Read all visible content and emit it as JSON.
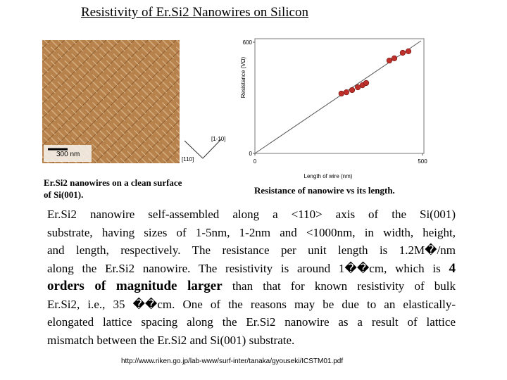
{
  "header": {
    "title": "Resistivity of Er.Si2 Nanowires on Silicon"
  },
  "image": {
    "scale_bar": "300 nm",
    "direction_a": "[110]",
    "direction_b": "[1-10]",
    "caption_lines": [
      "Er.Si2 nanowires on a clean surface",
      "of Si(001)."
    ]
  },
  "chart_data": {
    "type": "scatter",
    "x_label": "Length of wire (nm)",
    "y_label": "Resistance (VΩ)",
    "caption": "Resistance of nanowire vs its length.",
    "x": [
      258,
      273,
      290,
      307,
      321,
      332,
      401,
      416,
      441,
      458
    ],
    "values": [
      323,
      330,
      342,
      357,
      368,
      380,
      501,
      513,
      543,
      551
    ],
    "color": "#c0302a",
    "xlim": [
      0,
      500
    ],
    "ylim": [
      0,
      600
    ],
    "xticks": [
      0,
      500
    ],
    "yticks": [
      0,
      600
    ]
  },
  "body": {
    "lines": [
      [
        {
          "text": "Er.Si2 nanowire self-assembled along a <110> axis of the Si(001)",
          "bold": false
        }
      ],
      [
        {
          "text": "substrate, having sizes of 1-5nm, 1-2nm and <1000nm, in width, height,",
          "bold": false
        }
      ],
      [
        {
          "text": "and length, respectively.  The resistance per unit length is 1.2M�/nm",
          "bold": false
        }
      ],
      [
        {
          "text": "along the Er.Si2 nanowire.  The resistivity is around 1��cm, which is ",
          "bold": false
        },
        {
          "text": "4",
          "bold": true
        }
      ],
      [
        {
          "text": "orders of magnitude larger",
          "bold": true
        },
        {
          "text": " than that for known resistivity of bulk",
          "bold": false
        }
      ],
      [
        {
          "text": "Er.Si2, i.e., 35 ��cm.  One of the reasons may be due to an elastically-",
          "bold": false
        }
      ],
      [
        {
          "text": "elongated lattice spacing along the Er.Si2 nanowire as a result of lattice",
          "bold": false
        }
      ],
      [
        {
          "text": "mismatch between the Er.Si2 and Si(001) substrate.",
          "bold": false
        }
      ]
    ]
  },
  "footer": {
    "url": "http://www.riken.go.jp/lab-www/surf-inter/tanaka/gyouseki/ICSTM01.pdf"
  }
}
